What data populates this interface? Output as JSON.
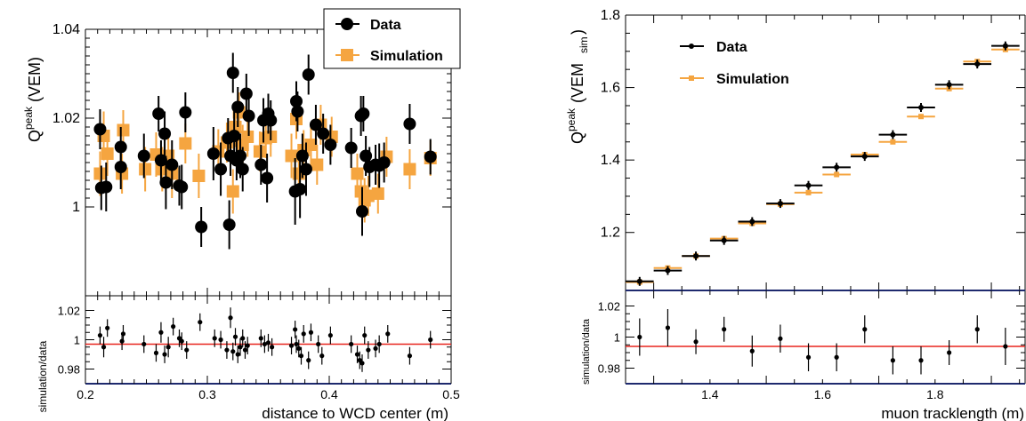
{
  "chart_data": [
    {
      "type": "scatter",
      "ylabel_main": "Q",
      "ylabel_sup": "peak",
      "ylabel_unit": "(VEM)",
      "xlabel": "distance to WCD center (m)",
      "xlim": [
        0.2,
        0.5
      ],
      "xticks": [
        "0.2",
        "0.3",
        "0.4",
        "0.5"
      ],
      "ylim": [
        0.98,
        1.04
      ],
      "yticks": [
        "1",
        "1.02",
        "1.04"
      ],
      "ratio_label": "simulation/data",
      "ratio_ylim": [
        0.97,
        1.03
      ],
      "ratio_yticks": [
        "0.98",
        "1",
        "1.02"
      ],
      "ratio_fit": 0.997,
      "legend": {
        "position": "top-right",
        "data_label": "Data",
        "sim_label": "Simulation"
      },
      "colors": {
        "data": "#000000",
        "simulation": "#f5a540",
        "fit": "#e8251e",
        "axis_bottom": "#1e2a6e"
      },
      "data_series": {
        "name": "Data",
        "points": [
          {
            "x": 0.212,
            "y": 1.0175,
            "err": 0.0045
          },
          {
            "x": 0.213,
            "y": 1.0043,
            "err": 0.005
          },
          {
            "x": 0.217,
            "y": 1.0045,
            "err": 0.0055
          },
          {
            "x": 0.229,
            "y": 1.0135,
            "err": 0.0045
          },
          {
            "x": 0.229,
            "y": 1.009,
            "err": 0.005
          },
          {
            "x": 0.248,
            "y": 1.0115,
            "err": 0.005
          },
          {
            "x": 0.26,
            "y": 1.021,
            "err": 0.004
          },
          {
            "x": 0.262,
            "y": 1.0105,
            "err": 0.0045
          },
          {
            "x": 0.265,
            "y": 1.0165,
            "err": 0.005
          },
          {
            "x": 0.266,
            "y": 1.0055,
            "err": 0.006
          },
          {
            "x": 0.271,
            "y": 1.0095,
            "err": 0.0055
          },
          {
            "x": 0.277,
            "y": 1.0048,
            "err": 0.0045
          },
          {
            "x": 0.279,
            "y": 1.0045,
            "err": 0.005
          },
          {
            "x": 0.282,
            "y": 1.0213,
            "err": 0.0045
          },
          {
            "x": 0.295,
            "y": 0.9955,
            "err": 0.0045
          },
          {
            "x": 0.305,
            "y": 1.012,
            "err": 0.006
          },
          {
            "x": 0.311,
            "y": 1.0085,
            "err": 0.006
          },
          {
            "x": 0.317,
            "y": 1.0155,
            "err": 0.0045
          },
          {
            "x": 0.318,
            "y": 0.996,
            "err": 0.0055
          },
          {
            "x": 0.319,
            "y": 1.0115,
            "err": 0.0045
          },
          {
            "x": 0.321,
            "y": 1.0302,
            "err": 0.0045
          },
          {
            "x": 0.322,
            "y": 1.016,
            "err": 0.0055
          },
          {
            "x": 0.324,
            "y": 1.0105,
            "err": 0.0045
          },
          {
            "x": 0.325,
            "y": 1.0225,
            "err": 0.0045
          },
          {
            "x": 0.327,
            "y": 1.0115,
            "err": 0.005
          },
          {
            "x": 0.329,
            "y": 1.0085,
            "err": 0.005
          },
          {
            "x": 0.332,
            "y": 1.0255,
            "err": 0.0045
          },
          {
            "x": 0.334,
            "y": 1.0205,
            "err": 0.0045
          },
          {
            "x": 0.344,
            "y": 1.0095,
            "err": 0.0045
          },
          {
            "x": 0.346,
            "y": 1.0195,
            "err": 0.005
          },
          {
            "x": 0.35,
            "y": 1.021,
            "err": 0.0045
          },
          {
            "x": 0.352,
            "y": 1.0195,
            "err": 0.0045
          },
          {
            "x": 0.349,
            "y": 1.0065,
            "err": 0.0055
          },
          {
            "x": 0.372,
            "y": 1.0035,
            "err": 0.0075
          },
          {
            "x": 0.373,
            "y": 1.0238,
            "err": 0.0045
          },
          {
            "x": 0.374,
            "y": 1.0215,
            "err": 0.0045
          },
          {
            "x": 0.376,
            "y": 1.004,
            "err": 0.0065
          },
          {
            "x": 0.378,
            "y": 1.0115,
            "err": 0.005
          },
          {
            "x": 0.381,
            "y": 1.0085,
            "err": 0.006
          },
          {
            "x": 0.383,
            "y": 1.0298,
            "err": 0.0045
          },
          {
            "x": 0.389,
            "y": 1.0185,
            "err": 0.0045
          },
          {
            "x": 0.395,
            "y": 1.0165,
            "err": 0.0045
          },
          {
            "x": 0.401,
            "y": 1.014,
            "err": 0.0045
          },
          {
            "x": 0.418,
            "y": 1.0133,
            "err": 0.0045
          },
          {
            "x": 0.426,
            "y": 1.0205,
            "err": 0.0045
          },
          {
            "x": 0.428,
            "y": 1.021,
            "err": 0.004
          },
          {
            "x": 0.427,
            "y": 0.999,
            "err": 0.0055
          },
          {
            "x": 0.43,
            "y": 1.0115,
            "err": 0.0045
          },
          {
            "x": 0.433,
            "y": 1.009,
            "err": 0.0045
          },
          {
            "x": 0.438,
            "y": 1.0095,
            "err": 0.0045
          },
          {
            "x": 0.441,
            "y": 1.0093,
            "err": 0.005
          },
          {
            "x": 0.445,
            "y": 1.01,
            "err": 0.0045
          },
          {
            "x": 0.466,
            "y": 1.0187,
            "err": 0.0045
          },
          {
            "x": 0.483,
            "y": 1.0113,
            "err": 0.004
          }
        ]
      },
      "sim_series": {
        "name": "Simulation",
        "points": [
          {
            "x": 0.212,
            "y": 1.0075,
            "err": 0.005
          },
          {
            "x": 0.215,
            "y": 1.016,
            "err": 0.0055
          },
          {
            "x": 0.218,
            "y": 1.012,
            "err": 0.005
          },
          {
            "x": 0.23,
            "y": 1.0075,
            "err": 0.0045
          },
          {
            "x": 0.231,
            "y": 1.0173,
            "err": 0.0045
          },
          {
            "x": 0.249,
            "y": 1.0085,
            "err": 0.005
          },
          {
            "x": 0.258,
            "y": 1.0118,
            "err": 0.005
          },
          {
            "x": 0.263,
            "y": 1.0085,
            "err": 0.005
          },
          {
            "x": 0.268,
            "y": 1.0115,
            "err": 0.0045
          },
          {
            "x": 0.271,
            "y": 1.0075,
            "err": 0.0055
          },
          {
            "x": 0.282,
            "y": 1.0143,
            "err": 0.0045
          },
          {
            "x": 0.293,
            "y": 1.007,
            "err": 0.005
          },
          {
            "x": 0.309,
            "y": 1.0125,
            "err": 0.005
          },
          {
            "x": 0.316,
            "y": 1.0145,
            "err": 0.0045
          },
          {
            "x": 0.321,
            "y": 1.0035,
            "err": 0.005
          },
          {
            "x": 0.323,
            "y": 1.018,
            "err": 0.0045
          },
          {
            "x": 0.326,
            "y": 1.0213,
            "err": 0.0045
          },
          {
            "x": 0.329,
            "y": 1.014,
            "err": 0.0045
          },
          {
            "x": 0.333,
            "y": 1.0158,
            "err": 0.0045
          },
          {
            "x": 0.343,
            "y": 1.0125,
            "err": 0.0045
          },
          {
            "x": 0.348,
            "y": 1.0155,
            "err": 0.0045
          },
          {
            "x": 0.352,
            "y": 1.0158,
            "err": 0.0045
          },
          {
            "x": 0.369,
            "y": 1.0115,
            "err": 0.005
          },
          {
            "x": 0.373,
            "y": 1.0198,
            "err": 0.0045
          },
          {
            "x": 0.375,
            "y": 1.0075,
            "err": 0.005
          },
          {
            "x": 0.379,
            "y": 1.0128,
            "err": 0.0045
          },
          {
            "x": 0.385,
            "y": 1.014,
            "err": 0.0045
          },
          {
            "x": 0.39,
            "y": 1.0095,
            "err": 0.0045
          },
          {
            "x": 0.393,
            "y": 1.0185,
            "err": 0.0045
          },
          {
            "x": 0.402,
            "y": 1.0158,
            "err": 0.0045
          },
          {
            "x": 0.423,
            "y": 1.0075,
            "err": 0.0045
          },
          {
            "x": 0.426,
            "y": 1.0035,
            "err": 0.005
          },
          {
            "x": 0.429,
            "y": 1.0015,
            "err": 0.005
          },
          {
            "x": 0.432,
            "y": 1.0025,
            "err": 0.0045
          },
          {
            "x": 0.44,
            "y": 1.003,
            "err": 0.0045
          },
          {
            "x": 0.447,
            "y": 1.0113,
            "err": 0.0045
          },
          {
            "x": 0.466,
            "y": 1.0085,
            "err": 0.0045
          },
          {
            "x": 0.483,
            "y": 1.011,
            "err": 0.004
          }
        ]
      },
      "ratio_points": [
        {
          "x": 0.212,
          "y": 1.003,
          "err": 0.006
        },
        {
          "x": 0.215,
          "y": 0.995,
          "err": 0.007
        },
        {
          "x": 0.218,
          "y": 1.008,
          "err": 0.006
        },
        {
          "x": 0.23,
          "y": 0.999,
          "err": 0.006
        },
        {
          "x": 0.231,
          "y": 1.004,
          "err": 0.006
        },
        {
          "x": 0.248,
          "y": 0.997,
          "err": 0.006
        },
        {
          "x": 0.258,
          "y": 0.991,
          "err": 0.006
        },
        {
          "x": 0.262,
          "y": 1.005,
          "err": 0.007
        },
        {
          "x": 0.265,
          "y": 0.99,
          "err": 0.006
        },
        {
          "x": 0.268,
          "y": 0.995,
          "err": 0.007
        },
        {
          "x": 0.272,
          "y": 1.009,
          "err": 0.006
        },
        {
          "x": 0.277,
          "y": 1.001,
          "err": 0.006
        },
        {
          "x": 0.279,
          "y": 0.999,
          "err": 0.006
        },
        {
          "x": 0.283,
          "y": 0.993,
          "err": 0.006
        },
        {
          "x": 0.294,
          "y": 1.012,
          "err": 0.006
        },
        {
          "x": 0.306,
          "y": 1.001,
          "err": 0.006
        },
        {
          "x": 0.311,
          "y": 1.0,
          "err": 0.006
        },
        {
          "x": 0.316,
          "y": 0.993,
          "err": 0.006
        },
        {
          "x": 0.319,
          "y": 1.015,
          "err": 0.007
        },
        {
          "x": 0.321,
          "y": 0.992,
          "err": 0.006
        },
        {
          "x": 0.323,
          "y": 1.002,
          "err": 0.006
        },
        {
          "x": 0.325,
          "y": 0.99,
          "err": 0.006
        },
        {
          "x": 0.327,
          "y": 0.995,
          "err": 0.006
        },
        {
          "x": 0.329,
          "y": 1.001,
          "err": 0.006
        },
        {
          "x": 0.331,
          "y": 0.993,
          "err": 0.006
        },
        {
          "x": 0.333,
          "y": 0.996,
          "err": 0.006
        },
        {
          "x": 0.344,
          "y": 1.001,
          "err": 0.006
        },
        {
          "x": 0.347,
          "y": 0.997,
          "err": 0.006
        },
        {
          "x": 0.35,
          "y": 0.998,
          "err": 0.006
        },
        {
          "x": 0.353,
          "y": 0.995,
          "err": 0.006
        },
        {
          "x": 0.369,
          "y": 0.996,
          "err": 0.006
        },
        {
          "x": 0.372,
          "y": 1.007,
          "err": 0.006
        },
        {
          "x": 0.373,
          "y": 0.997,
          "err": 0.006
        },
        {
          "x": 0.375,
          "y": 0.994,
          "err": 0.006
        },
        {
          "x": 0.377,
          "y": 0.989,
          "err": 0.006
        },
        {
          "x": 0.379,
          "y": 1.004,
          "err": 0.006
        },
        {
          "x": 0.383,
          "y": 0.986,
          "err": 0.006
        },
        {
          "x": 0.385,
          "y": 1.005,
          "err": 0.006
        },
        {
          "x": 0.391,
          "y": 0.997,
          "err": 0.006
        },
        {
          "x": 0.394,
          "y": 0.989,
          "err": 0.006
        },
        {
          "x": 0.401,
          "y": 1.003,
          "err": 0.006
        },
        {
          "x": 0.418,
          "y": 0.997,
          "err": 0.006
        },
        {
          "x": 0.423,
          "y": 0.99,
          "err": 0.006
        },
        {
          "x": 0.425,
          "y": 0.986,
          "err": 0.006
        },
        {
          "x": 0.427,
          "y": 0.984,
          "err": 0.006
        },
        {
          "x": 0.429,
          "y": 1.003,
          "err": 0.006
        },
        {
          "x": 0.432,
          "y": 0.993,
          "err": 0.006
        },
        {
          "x": 0.438,
          "y": 0.994,
          "err": 0.006
        },
        {
          "x": 0.441,
          "y": 0.997,
          "err": 0.006
        },
        {
          "x": 0.448,
          "y": 1.004,
          "err": 0.006
        },
        {
          "x": 0.466,
          "y": 0.989,
          "err": 0.006
        },
        {
          "x": 0.483,
          "y": 1.0,
          "err": 0.006
        }
      ]
    },
    {
      "type": "scatter",
      "ylabel_main": "Q",
      "ylabel_sup": "peak",
      "ylabel_unit": "(VEM",
      "ylabel_sub": "sim",
      "ylabel_close": ")",
      "xlabel": "muon tracklength (m)",
      "xlim": [
        1.25,
        1.96
      ],
      "xticks": [
        "1.4",
        "1.6",
        "1.8"
      ],
      "ylim": [
        1.04,
        1.8
      ],
      "yticks": [
        "1.2",
        "1.4",
        "1.6",
        "1.8"
      ],
      "ratio_label": "simulation/data",
      "ratio_ylim": [
        0.97,
        1.03
      ],
      "ratio_yticks": [
        "0.98",
        "1",
        "1.02"
      ],
      "ratio_fit": 0.994,
      "legend": {
        "position": "top-left",
        "data_label": "Data",
        "sim_label": "Simulation"
      },
      "colors": {
        "data": "#000000",
        "simulation": "#f5a540",
        "fit": "#e8251e",
        "axis_bottom": "#1e2a6e"
      },
      "bin_half_width": 0.025,
      "data_series": {
        "name": "Data",
        "points": [
          {
            "x": 1.275,
            "y": 1.065
          },
          {
            "x": 1.325,
            "y": 1.095
          },
          {
            "x": 1.375,
            "y": 1.135
          },
          {
            "x": 1.425,
            "y": 1.178
          },
          {
            "x": 1.475,
            "y": 1.23
          },
          {
            "x": 1.525,
            "y": 1.28
          },
          {
            "x": 1.575,
            "y": 1.33
          },
          {
            "x": 1.625,
            "y": 1.38
          },
          {
            "x": 1.675,
            "y": 1.41
          },
          {
            "x": 1.725,
            "y": 1.47
          },
          {
            "x": 1.775,
            "y": 1.545
          },
          {
            "x": 1.825,
            "y": 1.608
          },
          {
            "x": 1.875,
            "y": 1.665
          },
          {
            "x": 1.925,
            "y": 1.715
          }
        ]
      },
      "sim_series": {
        "name": "Simulation",
        "points": [
          {
            "x": 1.275,
            "y": 1.063
          },
          {
            "x": 1.325,
            "y": 1.102
          },
          {
            "x": 1.375,
            "y": 1.135
          },
          {
            "x": 1.425,
            "y": 1.183
          },
          {
            "x": 1.475,
            "y": 1.225
          },
          {
            "x": 1.525,
            "y": 1.278
          },
          {
            "x": 1.575,
            "y": 1.31
          },
          {
            "x": 1.625,
            "y": 1.36
          },
          {
            "x": 1.675,
            "y": 1.415
          },
          {
            "x": 1.725,
            "y": 1.45
          },
          {
            "x": 1.775,
            "y": 1.52
          },
          {
            "x": 1.825,
            "y": 1.597
          },
          {
            "x": 1.875,
            "y": 1.672
          },
          {
            "x": 1.925,
            "y": 1.705
          }
        ]
      },
      "ratio_points": [
        {
          "x": 1.275,
          "y": 1.0,
          "err": 0.012
        },
        {
          "x": 1.325,
          "y": 1.006,
          "err": 0.012
        },
        {
          "x": 1.375,
          "y": 0.997,
          "err": 0.008
        },
        {
          "x": 1.425,
          "y": 1.005,
          "err": 0.008
        },
        {
          "x": 1.475,
          "y": 0.991,
          "err": 0.01
        },
        {
          "x": 1.525,
          "y": 0.999,
          "err": 0.009
        },
        {
          "x": 1.575,
          "y": 0.987,
          "err": 0.009
        },
        {
          "x": 1.625,
          "y": 0.987,
          "err": 0.009
        },
        {
          "x": 1.675,
          "y": 1.005,
          "err": 0.009
        },
        {
          "x": 1.725,
          "y": 0.985,
          "err": 0.009
        },
        {
          "x": 1.775,
          "y": 0.985,
          "err": 0.009
        },
        {
          "x": 1.825,
          "y": 0.99,
          "err": 0.008
        },
        {
          "x": 1.875,
          "y": 1.005,
          "err": 0.009
        },
        {
          "x": 1.925,
          "y": 0.994,
          "err": 0.012
        }
      ]
    }
  ]
}
